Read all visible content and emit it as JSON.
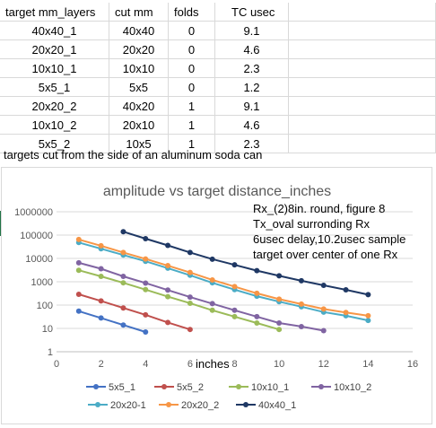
{
  "table": {
    "headers": [
      "target mm_layers",
      "cut mm",
      "folds",
      "TC usec"
    ],
    "rows": [
      [
        "40x40_1",
        "40x40",
        "0",
        "9.1"
      ],
      [
        "20x20_1",
        "20x20",
        "0",
        "4.6"
      ],
      [
        "10x10_1",
        "10x10",
        "0",
        "2.3"
      ],
      [
        "5x5_1",
        "5x5",
        "0",
        "1.2"
      ],
      [
        "20x20_2",
        "40x20",
        "1",
        "9.1"
      ],
      [
        "10x10_2",
        "20x10",
        "1",
        "4.6"
      ],
      [
        "5x5_2",
        "10x5",
        "1",
        "2.3"
      ]
    ],
    "note": "targets cut from the side of an aluminum soda can"
  },
  "chart_data": {
    "type": "line",
    "title": "amplitude vs target distance_inches",
    "xlabel": "inches",
    "ylabel": "",
    "x_ticks": [
      "0",
      "2",
      "4",
      "6",
      "8",
      "10",
      "12",
      "14",
      "16"
    ],
    "y_ticks": [
      "1",
      "10",
      "100",
      "1000",
      "10000",
      "100000",
      "1000000"
    ],
    "xlim": [
      0,
      16
    ],
    "ylim": [
      1,
      1000000
    ],
    "y_scale": "log",
    "grid": true,
    "legend_position": "bottom",
    "annotation_lines": [
      "Rx_(2)8in. round, figure 8",
      "Tx_oval surronding Rx",
      "6usec delay,10.2usec sample",
      "target over center of one Rx"
    ],
    "series": [
      {
        "name": "5x5_1",
        "color": "#4472c4",
        "x": [
          1,
          2,
          3,
          4
        ],
        "y": [
          55,
          28,
          14,
          7
        ]
      },
      {
        "name": "5x5_2",
        "color": "#c0504d",
        "x": [
          1,
          2,
          3,
          4,
          5,
          6
        ],
        "y": [
          290,
          150,
          75,
          38,
          18,
          9
        ]
      },
      {
        "name": "10x10_1",
        "color": "#9bbb59",
        "x": [
          1,
          2,
          3,
          4,
          5,
          6,
          7,
          8,
          9,
          10
        ],
        "y": [
          3100,
          1700,
          900,
          460,
          230,
          120,
          60,
          32,
          17,
          9
        ]
      },
      {
        "name": "10x10_2",
        "color": "#8064a2",
        "x": [
          1,
          2,
          3,
          4,
          5,
          6,
          7,
          8,
          9,
          10,
          11,
          12
        ],
        "y": [
          6500,
          3600,
          1700,
          880,
          440,
          220,
          115,
          60,
          32,
          17,
          12,
          8
        ]
      },
      {
        "name": "20x20-1",
        "color": "#4bacc6",
        "x": [
          1,
          2,
          3,
          4,
          5,
          6,
          7,
          8,
          9,
          10,
          11,
          12,
          13,
          14
        ],
        "y": [
          48000,
          26000,
          14000,
          7500,
          3800,
          1900,
          900,
          460,
          240,
          140,
          85,
          50,
          35,
          22
        ]
      },
      {
        "name": "20x20_2",
        "color": "#f79646",
        "x": [
          1,
          2,
          3,
          4,
          5,
          6,
          7,
          8,
          9,
          10,
          11,
          12,
          13,
          14
        ],
        "y": [
          65000,
          35000,
          18000,
          9500,
          4900,
          2500,
          1200,
          620,
          320,
          180,
          110,
          68,
          48,
          35
        ]
      },
      {
        "name": "40x40_1",
        "color": "#1f3864",
        "x": [
          3,
          4,
          5,
          6,
          7,
          8,
          9,
          10,
          11,
          12,
          13,
          14
        ],
        "y": [
          140000,
          70000,
          36000,
          18000,
          9300,
          5300,
          3000,
          1800,
          1100,
          700,
          450,
          280
        ]
      }
    ]
  }
}
